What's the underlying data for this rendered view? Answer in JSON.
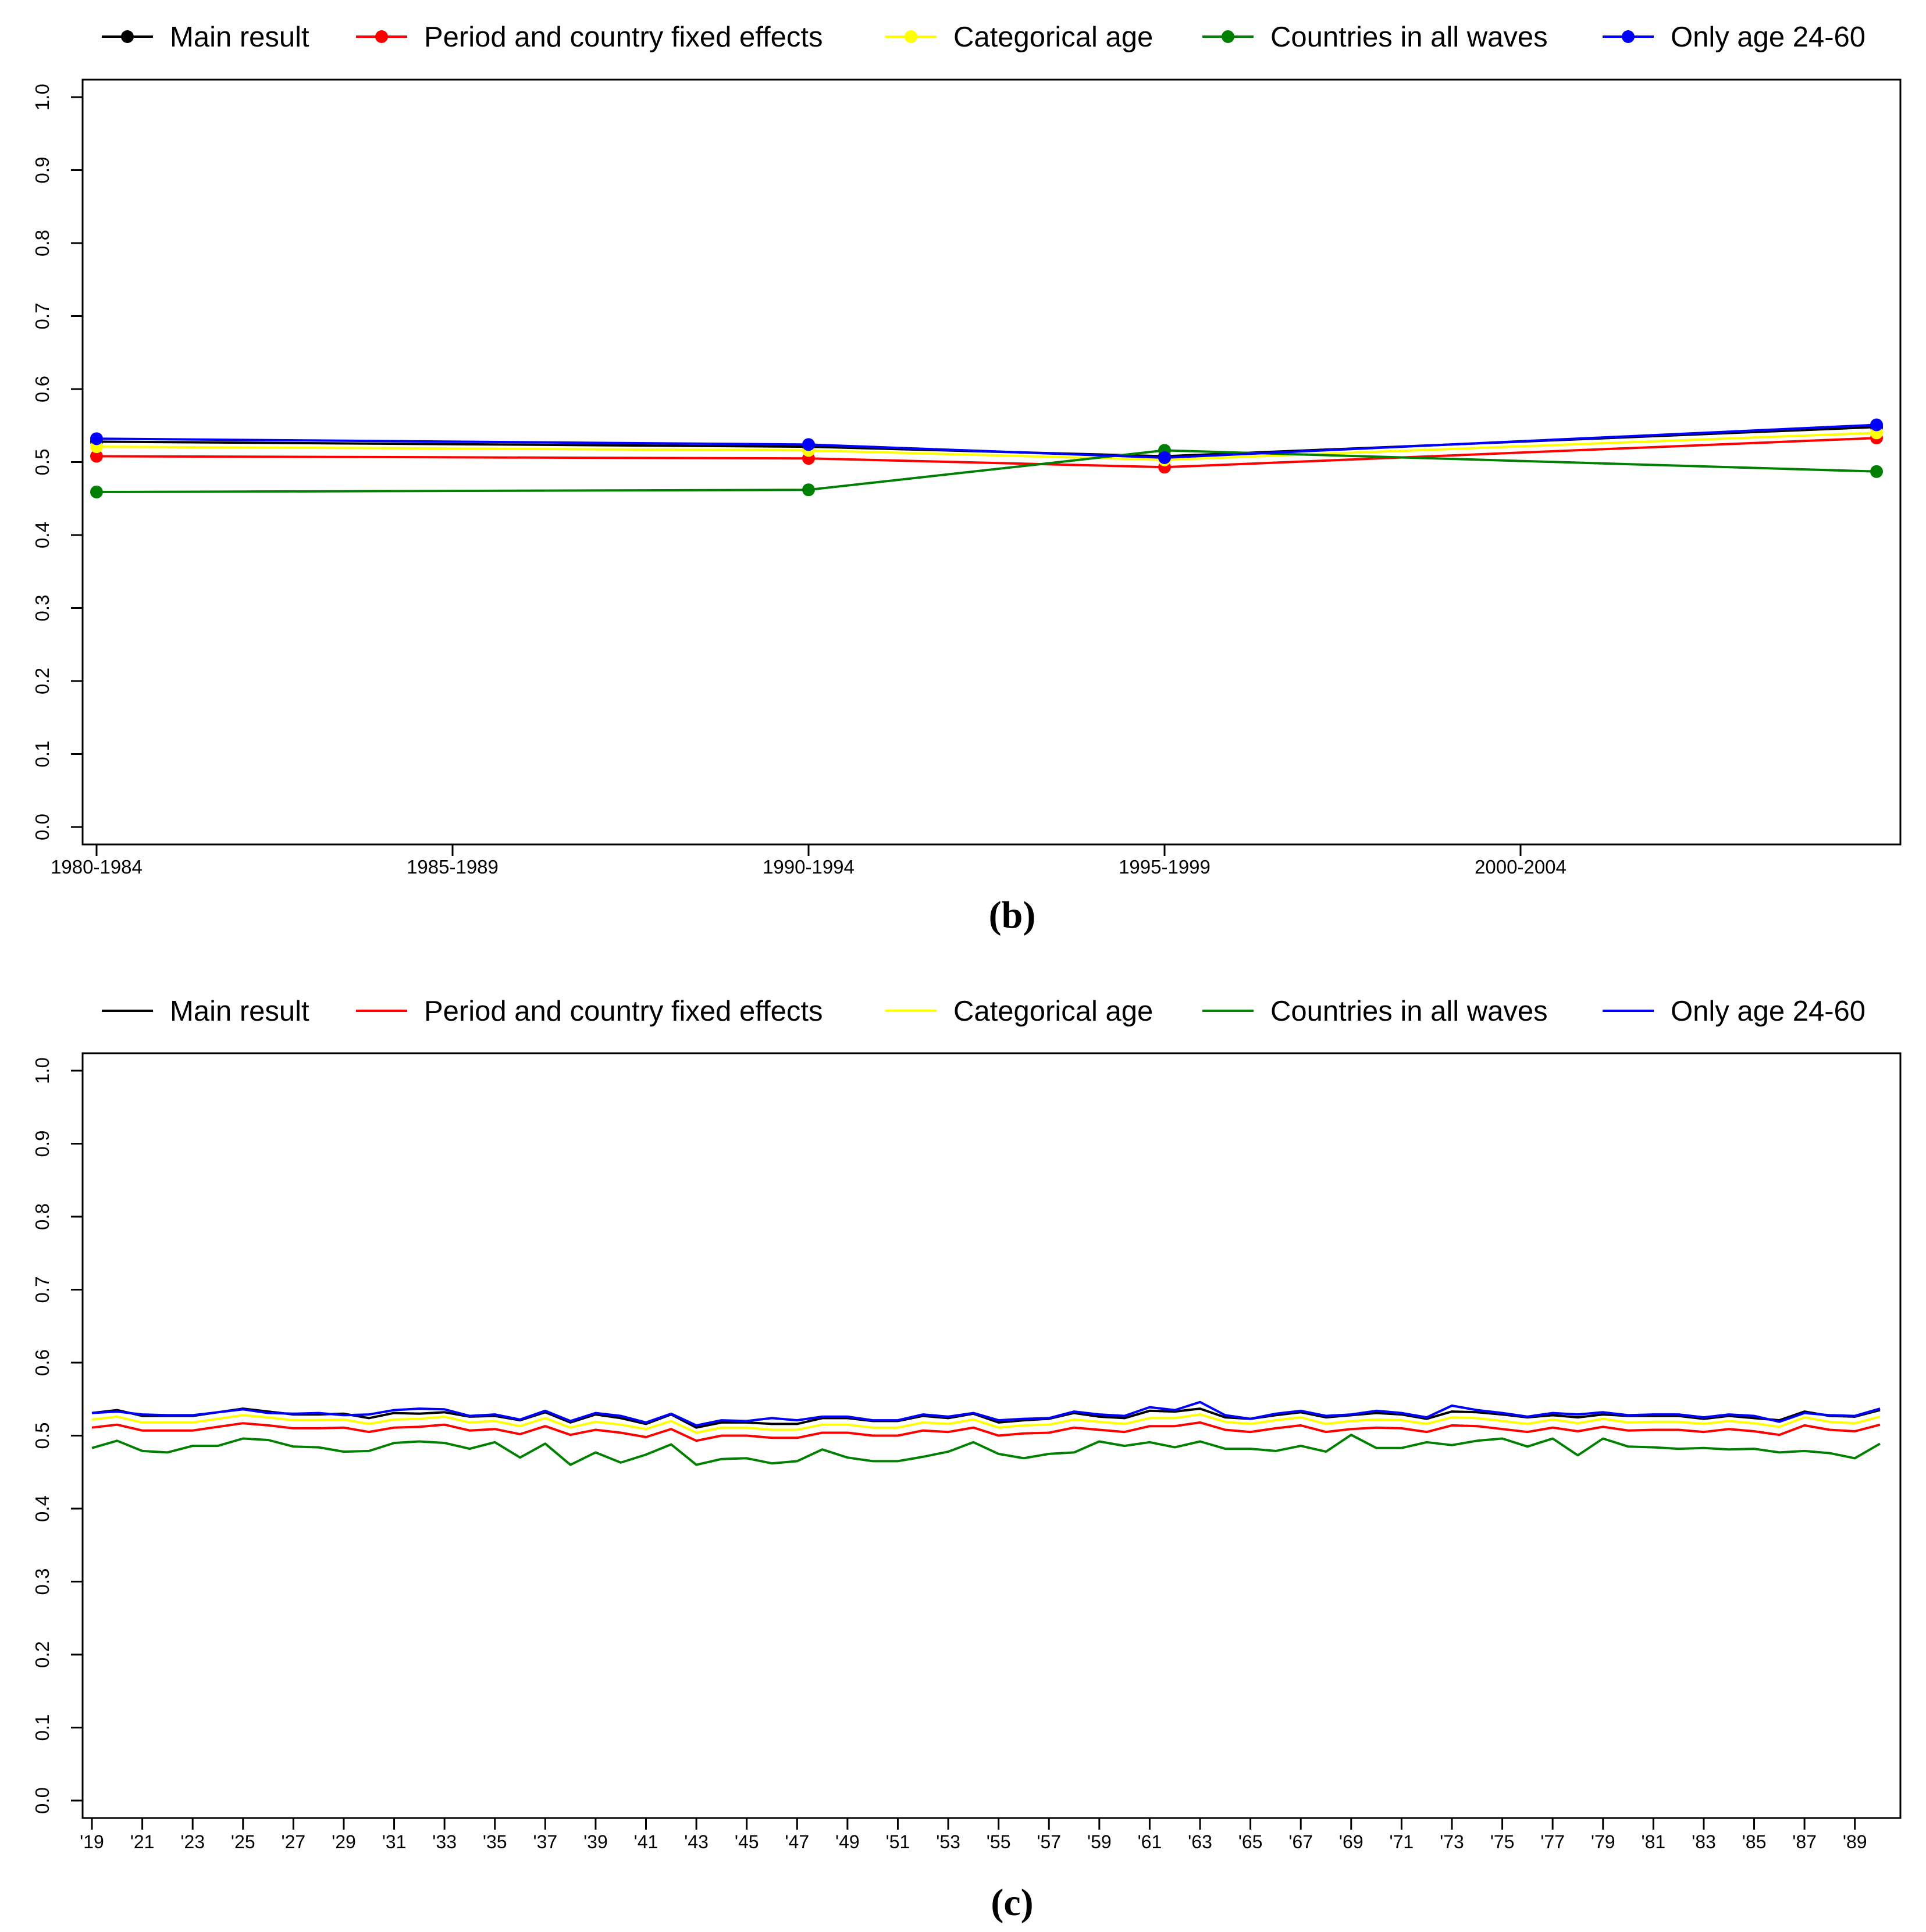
{
  "chart_data": [
    {
      "panel": "b",
      "caption": "(b)",
      "type": "line",
      "markers": true,
      "legend": "top",
      "legend_entries": [
        "Main result",
        "Period and country fixed effects",
        "Categorical age",
        "Countries in all waves",
        "Only age 24-60"
      ],
      "x_tick_labels": [
        "1980-1984",
        "1985-1989",
        "1990-1994",
        "1995-1999",
        "2000-2004"
      ],
      "x": [
        0,
        2,
        3,
        5
      ],
      "ylim": [
        0,
        1
      ],
      "y_tick_labels": [
        "0.0",
        "0.1",
        "0.2",
        "0.3",
        "0.4",
        "0.5",
        "0.6",
        "0.7",
        "0.8",
        "0.9",
        "1.0"
      ],
      "xlabel": "",
      "ylabel": "",
      "series": [
        {
          "name": "Main result",
          "color": "#000000",
          "values": [
            0.528,
            0.521,
            0.508,
            0.548
          ]
        },
        {
          "name": "Period and country fixed effects",
          "color": "#ff0000",
          "values": [
            0.508,
            0.505,
            0.493,
            0.533
          ]
        },
        {
          "name": "Categorical age",
          "color": "#ffff00",
          "values": [
            0.521,
            0.516,
            0.503,
            0.54
          ]
        },
        {
          "name": "Countries in all waves",
          "color": "#008000",
          "values": [
            0.459,
            0.462,
            0.516,
            0.487
          ]
        },
        {
          "name": "Only age 24-60",
          "color": "#0000ff",
          "values": [
            0.532,
            0.524,
            0.506,
            0.551
          ]
        }
      ]
    },
    {
      "panel": "c",
      "caption": "(c)",
      "type": "line",
      "markers": false,
      "legend": "top",
      "legend_entries": [
        "Main result",
        "Period and country fixed effects",
        "Categorical age",
        "Countries in all waves",
        "Only age 24-60"
      ],
      "x_start": 1919,
      "x_end": 1990,
      "x_tick_labels": [
        "'19",
        "'21",
        "'23",
        "'25",
        "'27",
        "'29",
        "'31",
        "'33",
        "'35",
        "'37",
        "'39",
        "'41",
        "'43",
        "'45",
        "'47",
        "'49",
        "'51",
        "'53",
        "'55",
        "'57",
        "'59",
        "'61",
        "'63",
        "'65",
        "'67",
        "'69",
        "'71",
        "'73",
        "'75",
        "'77",
        "'79",
        "'81",
        "'83",
        "'85",
        "'87",
        "'89"
      ],
      "ylim": [
        0,
        1
      ],
      "y_tick_labels": [
        "0.0",
        "0.1",
        "0.2",
        "0.3",
        "0.4",
        "0.5",
        "0.6",
        "0.7",
        "0.8",
        "0.9",
        "1.0"
      ],
      "xlabel": "",
      "ylabel": "",
      "series": [
        {
          "name": "Main result",
          "color": "#000000",
          "values": [
            0.531,
            0.535,
            0.527,
            0.527,
            0.527,
            0.532,
            0.537,
            0.533,
            0.529,
            0.529,
            0.53,
            0.524,
            0.531,
            0.53,
            0.532,
            0.526,
            0.527,
            0.521,
            0.532,
            0.518,
            0.529,
            0.524,
            0.516,
            0.529,
            0.511,
            0.518,
            0.518,
            0.516,
            0.516,
            0.524,
            0.524,
            0.52,
            0.52,
            0.527,
            0.524,
            0.53,
            0.518,
            0.521,
            0.523,
            0.531,
            0.526,
            0.524,
            0.534,
            0.533,
            0.537,
            0.525,
            0.523,
            0.528,
            0.532,
            0.525,
            0.528,
            0.531,
            0.529,
            0.523,
            0.533,
            0.532,
            0.529,
            0.525,
            0.528,
            0.525,
            0.529,
            0.527,
            0.527,
            0.527,
            0.523,
            0.527,
            0.524,
            0.521,
            0.533,
            0.527,
            0.526,
            0.535
          ]
        },
        {
          "name": "Period and country fixed effects",
          "color": "#ff0000",
          "values": [
            0.511,
            0.515,
            0.507,
            0.507,
            0.507,
            0.512,
            0.517,
            0.514,
            0.51,
            0.51,
            0.511,
            0.505,
            0.511,
            0.512,
            0.515,
            0.507,
            0.509,
            0.502,
            0.513,
            0.501,
            0.508,
            0.504,
            0.498,
            0.509,
            0.493,
            0.5,
            0.5,
            0.497,
            0.497,
            0.504,
            0.504,
            0.5,
            0.5,
            0.507,
            0.505,
            0.511,
            0.5,
            0.503,
            0.504,
            0.511,
            0.508,
            0.505,
            0.513,
            0.513,
            0.518,
            0.508,
            0.505,
            0.51,
            0.514,
            0.505,
            0.509,
            0.511,
            0.51,
            0.505,
            0.514,
            0.513,
            0.509,
            0.505,
            0.511,
            0.506,
            0.512,
            0.507,
            0.508,
            0.508,
            0.505,
            0.509,
            0.506,
            0.501,
            0.514,
            0.508,
            0.506,
            0.515
          ]
        },
        {
          "name": "Categorical age",
          "color": "#ffff00",
          "values": [
            0.522,
            0.526,
            0.518,
            0.518,
            0.518,
            0.523,
            0.528,
            0.525,
            0.521,
            0.521,
            0.522,
            0.516,
            0.522,
            0.523,
            0.526,
            0.518,
            0.52,
            0.513,
            0.524,
            0.511,
            0.519,
            0.515,
            0.509,
            0.52,
            0.504,
            0.511,
            0.511,
            0.508,
            0.508,
            0.515,
            0.515,
            0.511,
            0.511,
            0.518,
            0.516,
            0.522,
            0.511,
            0.514,
            0.515,
            0.522,
            0.519,
            0.516,
            0.524,
            0.524,
            0.529,
            0.519,
            0.516,
            0.521,
            0.525,
            0.516,
            0.52,
            0.522,
            0.521,
            0.516,
            0.525,
            0.524,
            0.52,
            0.516,
            0.522,
            0.517,
            0.523,
            0.518,
            0.519,
            0.519,
            0.516,
            0.52,
            0.517,
            0.512,
            0.525,
            0.519,
            0.517,
            0.526
          ]
        },
        {
          "name": "Countries in all waves",
          "color": "#008000",
          "values": [
            0.483,
            0.493,
            0.479,
            0.477,
            0.486,
            0.486,
            0.496,
            0.494,
            0.485,
            0.484,
            0.478,
            0.479,
            0.49,
            0.492,
            0.49,
            0.482,
            0.491,
            0.47,
            0.489,
            0.46,
            0.477,
            0.463,
            0.474,
            0.488,
            0.46,
            0.468,
            0.469,
            0.462,
            0.465,
            0.481,
            0.47,
            0.465,
            0.465,
            0.471,
            0.478,
            0.491,
            0.475,
            0.469,
            0.475,
            0.477,
            0.492,
            0.486,
            0.491,
            0.484,
            0.492,
            0.482,
            0.482,
            0.479,
            0.486,
            0.478,
            0.501,
            0.483,
            0.483,
            0.491,
            0.487,
            0.493,
            0.496,
            0.485,
            0.496,
            0.473,
            0.496,
            0.485,
            0.484,
            0.482,
            0.483,
            0.481,
            0.482,
            0.477,
            0.479,
            0.476,
            0.469,
            0.489
          ]
        },
        {
          "name": "Only age 24-60",
          "color": "#0000ff",
          "values": [
            0.531,
            0.533,
            0.529,
            0.528,
            0.528,
            0.532,
            0.536,
            0.531,
            0.53,
            0.531,
            0.528,
            0.529,
            0.535,
            0.537,
            0.536,
            0.527,
            0.529,
            0.522,
            0.534,
            0.52,
            0.531,
            0.527,
            0.518,
            0.53,
            0.514,
            0.521,
            0.52,
            0.524,
            0.521,
            0.526,
            0.526,
            0.521,
            0.521,
            0.529,
            0.526,
            0.531,
            0.521,
            0.523,
            0.524,
            0.533,
            0.529,
            0.527,
            0.539,
            0.535,
            0.546,
            0.528,
            0.523,
            0.53,
            0.534,
            0.527,
            0.529,
            0.534,
            0.531,
            0.525,
            0.541,
            0.535,
            0.531,
            0.526,
            0.531,
            0.529,
            0.532,
            0.528,
            0.529,
            0.529,
            0.525,
            0.529,
            0.527,
            0.519,
            0.531,
            0.528,
            0.527,
            0.537
          ]
        }
      ]
    }
  ]
}
